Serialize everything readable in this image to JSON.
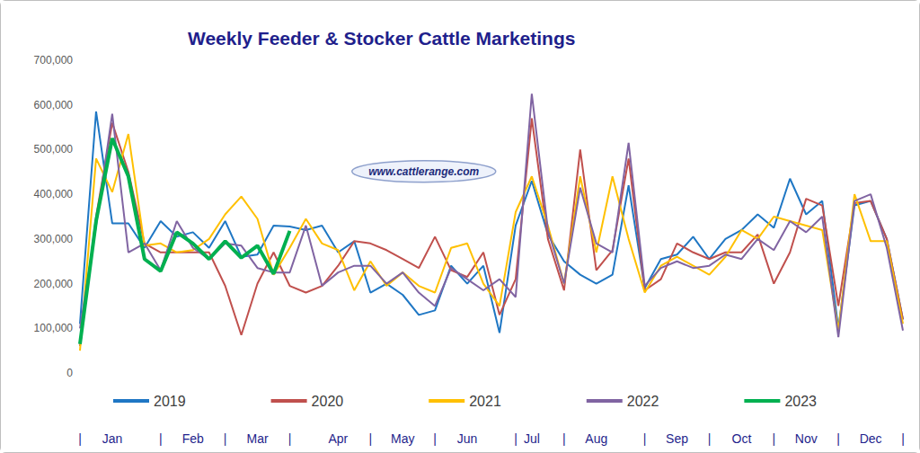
{
  "chart_data": {
    "type": "line",
    "title": "Weekly Feeder & Stocker Cattle Marketings",
    "annotations": [
      {
        "text": "www.cattlerange.com"
      }
    ],
    "categories": [
      "|",
      null,
      "Jan",
      null,
      null,
      "|",
      null,
      "Feb",
      null,
      "|",
      null,
      "Mar",
      null,
      "|",
      null,
      null,
      "Apr",
      null,
      "|",
      null,
      "May",
      null,
      "|",
      null,
      "Jun",
      null,
      null,
      "|",
      "Jul",
      null,
      "|",
      null,
      "Aug",
      null,
      null,
      "|",
      null,
      "Sep",
      null,
      "|",
      null,
      "Oct",
      null,
      "|",
      null,
      "Nov",
      null,
      "|",
      null,
      "Dec",
      null,
      "|"
    ],
    "series": [
      {
        "name": "2019",
        "color": "#1f77c4",
        "values": [
          110000,
          585000,
          335000,
          335000,
          280000,
          340000,
          305000,
          315000,
          280000,
          340000,
          260000,
          265000,
          330000,
          328000,
          320000,
          330000,
          270000,
          295000,
          180000,
          200000,
          175000,
          130000,
          140000,
          240000,
          200000,
          240000,
          90000,
          330000,
          430000,
          310000,
          250000,
          220000,
          200000,
          220000,
          420000,
          190000,
          255000,
          265000,
          305000,
          255000,
          300000,
          320000,
          355000,
          325000,
          435000,
          355000,
          385000,
          100000,
          375000,
          385000,
          300000,
          120000
        ]
      },
      {
        "name": "2020",
        "color": "#c0504d",
        "values": [
          60000,
          350000,
          560000,
          450000,
          290000,
          270000,
          270000,
          270000,
          270000,
          195000,
          85000,
          200000,
          270000,
          195000,
          180000,
          195000,
          240000,
          295000,
          290000,
          275000,
          255000,
          235000,
          305000,
          230000,
          215000,
          270000,
          130000,
          210000,
          570000,
          300000,
          185000,
          500000,
          230000,
          275000,
          480000,
          185000,
          210000,
          290000,
          270000,
          255000,
          270000,
          270000,
          310000,
          200000,
          270000,
          390000,
          375000,
          150000,
          380000,
          385000,
          300000,
          120000
        ]
      },
      {
        "name": "2021",
        "color": "#ffc000",
        "values": [
          50000,
          480000,
          405000,
          535000,
          285000,
          290000,
          270000,
          275000,
          300000,
          355000,
          395000,
          345000,
          220000,
          280000,
          345000,
          290000,
          275000,
          185000,
          250000,
          195000,
          225000,
          195000,
          180000,
          280000,
          290000,
          200000,
          150000,
          360000,
          440000,
          330000,
          200000,
          440000,
          270000,
          440000,
          300000,
          180000,
          240000,
          260000,
          240000,
          220000,
          260000,
          320000,
          300000,
          350000,
          340000,
          330000,
          320000,
          95000,
          400000,
          295000,
          295000,
          110000
        ]
      },
      {
        "name": "2022",
        "color": "#8064a2",
        "values": [
          100000,
          330000,
          580000,
          270000,
          290000,
          230000,
          340000,
          280000,
          255000,
          290000,
          285000,
          235000,
          225000,
          225000,
          330000,
          195000,
          225000,
          240000,
          240000,
          200000,
          225000,
          180000,
          150000,
          235000,
          210000,
          185000,
          210000,
          170000,
          625000,
          320000,
          200000,
          415000,
          290000,
          270000,
          515000,
          195000,
          235000,
          250000,
          235000,
          240000,
          265000,
          255000,
          300000,
          275000,
          340000,
          315000,
          350000,
          80000,
          385000,
          400000,
          280000,
          95000
        ]
      },
      {
        "name": "2023",
        "color": "#00b050",
        "values": [
          65000,
          340000,
          525000,
          440000,
          255000,
          228000,
          315000,
          290000,
          255000,
          295000,
          258000,
          285000,
          222000,
          318000,
          null,
          null,
          null,
          null,
          null,
          null,
          null,
          null,
          null,
          null,
          null,
          null,
          null,
          null,
          null,
          null,
          null,
          null,
          null,
          null,
          null,
          null,
          null,
          null,
          null,
          null,
          null,
          null,
          null,
          null,
          null,
          null,
          null,
          null,
          null,
          null,
          null,
          null
        ]
      }
    ],
    "ylim": [
      0,
      700000
    ],
    "yticks": [
      0,
      {
        "value": 100000,
        "label": "100,000"
      },
      {
        "value": 200000,
        "label": "200,000"
      },
      {
        "value": 300000,
        "label": "300,000"
      },
      {
        "value": 400000,
        "label": "400,000"
      },
      {
        "value": 500000,
        "label": "500,000"
      },
      {
        "value": 600000,
        "label": "600,000"
      },
      {
        "value": 700000,
        "label": "700,000"
      }
    ],
    "grid": false,
    "legend": "bottom",
    "marker": "none"
  }
}
